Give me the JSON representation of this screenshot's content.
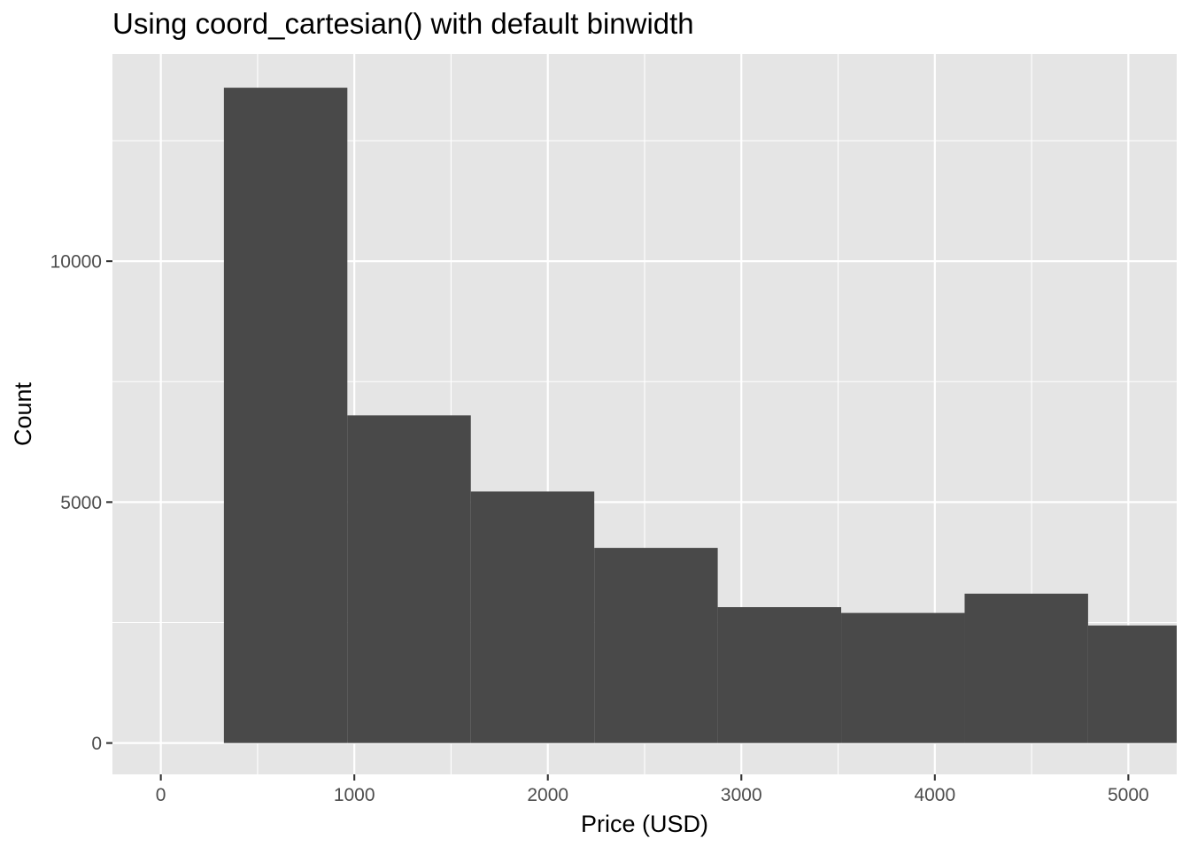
{
  "chart_data": {
    "type": "bar",
    "title": "Using coord_cartesian() with default binwidth",
    "xlabel": "Price (USD)",
    "ylabel": "Count",
    "bins": [
      {
        "x_start": 326,
        "x_end": 964,
        "count": 13600
      },
      {
        "x_start": 964,
        "x_end": 1602,
        "count": 6800
      },
      {
        "x_start": 1602,
        "x_end": 2240,
        "count": 5220
      },
      {
        "x_start": 2240,
        "x_end": 2878,
        "count": 4050
      },
      {
        "x_start": 2878,
        "x_end": 3516,
        "count": 2820
      },
      {
        "x_start": 3516,
        "x_end": 4154,
        "count": 2700
      },
      {
        "x_start": 4154,
        "x_end": 4792,
        "count": 3100
      },
      {
        "x_start": 4792,
        "x_end": 5430,
        "count": 2440
      }
    ],
    "xlim": [
      -250,
      5250
    ],
    "ylim": [
      -650,
      14300
    ],
    "x_ticks": [
      0,
      1000,
      2000,
      3000,
      4000,
      5000
    ],
    "y_ticks": [
      0,
      5000,
      10000
    ],
    "grid": true,
    "legend": "none",
    "colors": {
      "panel": "#e5e5e5",
      "grid_major": "#ffffff",
      "bar_fill": "#494949",
      "tick_text": "#4d4d4d",
      "tick_mark": "#333333"
    }
  }
}
